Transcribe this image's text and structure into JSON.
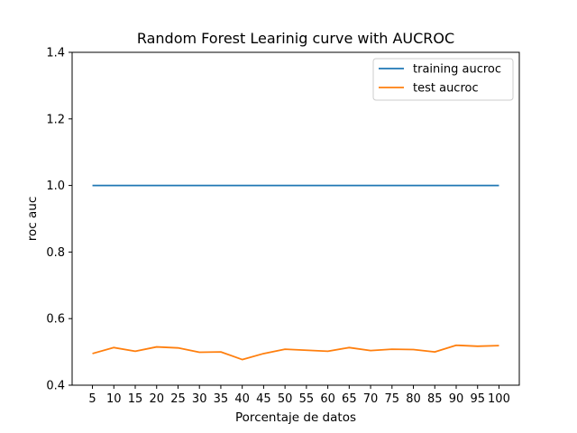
{
  "chart_data": {
    "type": "line",
    "title": "Random Forest Learinig curve with AUCROC",
    "xlabel": "Porcentaje de datos",
    "ylabel": "roc auc",
    "x": [
      5,
      10,
      15,
      20,
      25,
      30,
      35,
      40,
      45,
      50,
      55,
      60,
      65,
      70,
      75,
      80,
      85,
      90,
      95,
      100
    ],
    "ylim": [
      0.4,
      1.4
    ],
    "yticks": [
      "0.4",
      "0.6",
      "0.8",
      "1.0",
      "1.2",
      "1.4"
    ],
    "xticks": [
      "5",
      "10",
      "15",
      "20",
      "25",
      "30",
      "35",
      "40",
      "45",
      "50",
      "55",
      "60",
      "65",
      "70",
      "75",
      "80",
      "85",
      "90",
      "95",
      "100"
    ],
    "legend_position": "top-right",
    "grid": false,
    "series": [
      {
        "name": "training aucroc",
        "color": "#1f77b4",
        "values": [
          1.0,
          1.0,
          1.0,
          1.0,
          1.0,
          1.0,
          1.0,
          1.0,
          1.0,
          1.0,
          1.0,
          1.0,
          1.0,
          1.0,
          1.0,
          1.0,
          1.0,
          1.0,
          1.0,
          1.0
        ]
      },
      {
        "name": "test aucroc",
        "color": "#ff7f0e",
        "values": [
          0.495,
          0.513,
          0.502,
          0.515,
          0.512,
          0.499,
          0.5,
          0.477,
          0.495,
          0.508,
          0.505,
          0.502,
          0.513,
          0.504,
          0.508,
          0.507,
          0.5,
          0.52,
          0.517,
          0.519
        ]
      }
    ]
  }
}
